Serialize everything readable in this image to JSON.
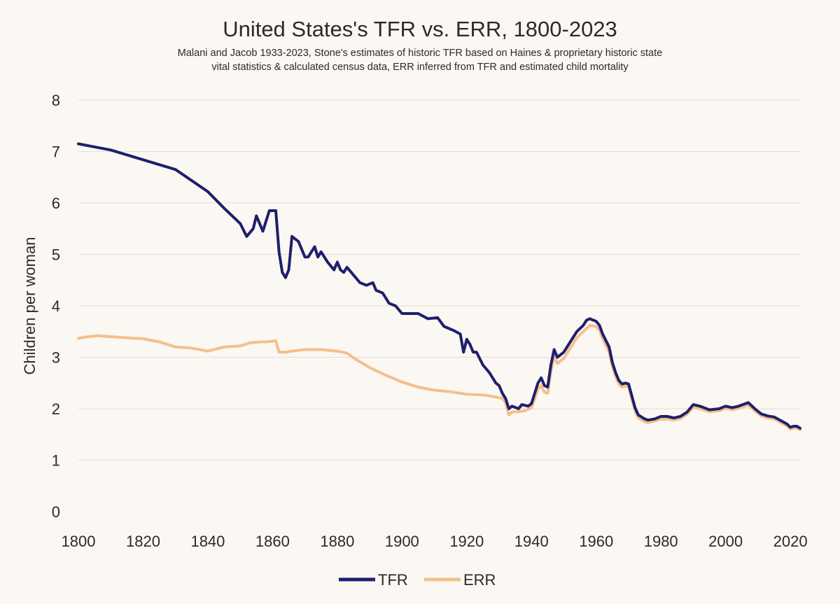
{
  "chart_data": {
    "type": "line",
    "title": "United States's TFR vs. ERR, 1800-2023",
    "subtitle": [
      "Malani and Jacob 1933-2023, Stone's estimates of historic TFR based on Haines & proprietary historic state",
      "vital statistics & calculated census data, ERR inferred from TFR and estimated child mortality"
    ],
    "xlabel": "",
    "ylabel": "Children per woman",
    "xlim": [
      1800,
      2023
    ],
    "ylim": [
      0,
      8
    ],
    "xticks": [
      1800,
      1820,
      1840,
      1860,
      1880,
      1900,
      1920,
      1940,
      1960,
      1980,
      2000,
      2020
    ],
    "yticks": [
      0,
      1,
      2,
      3,
      4,
      5,
      6,
      7,
      8
    ],
    "grid": true,
    "legend_position": "bottom-center",
    "series": [
      {
        "name": "TFR",
        "color": "#1f1f6e",
        "points": [
          [
            1800,
            7.15
          ],
          [
            1810,
            7.03
          ],
          [
            1820,
            6.84
          ],
          [
            1830,
            6.65
          ],
          [
            1840,
            6.22
          ],
          [
            1845,
            5.9
          ],
          [
            1850,
            5.6
          ],
          [
            1852,
            5.35
          ],
          [
            1854,
            5.5
          ],
          [
            1855,
            5.75
          ],
          [
            1857,
            5.45
          ],
          [
            1859,
            5.85
          ],
          [
            1861,
            5.85
          ],
          [
            1862,
            5.05
          ],
          [
            1863,
            4.65
          ],
          [
            1864,
            4.55
          ],
          [
            1865,
            4.7
          ],
          [
            1866,
            5.35
          ],
          [
            1868,
            5.25
          ],
          [
            1870,
            4.95
          ],
          [
            1871,
            4.95
          ],
          [
            1873,
            5.15
          ],
          [
            1874,
            4.95
          ],
          [
            1875,
            5.05
          ],
          [
            1877,
            4.85
          ],
          [
            1879,
            4.7
          ],
          [
            1880,
            4.85
          ],
          [
            1881,
            4.7
          ],
          [
            1882,
            4.65
          ],
          [
            1883,
            4.75
          ],
          [
            1885,
            4.6
          ],
          [
            1887,
            4.45
          ],
          [
            1889,
            4.4
          ],
          [
            1891,
            4.45
          ],
          [
            1892,
            4.3
          ],
          [
            1894,
            4.25
          ],
          [
            1896,
            4.05
          ],
          [
            1898,
            4.0
          ],
          [
            1900,
            3.85
          ],
          [
            1902,
            3.85
          ],
          [
            1905,
            3.85
          ],
          [
            1908,
            3.75
          ],
          [
            1911,
            3.77
          ],
          [
            1913,
            3.6
          ],
          [
            1916,
            3.52
          ],
          [
            1918,
            3.45
          ],
          [
            1919,
            3.1
          ],
          [
            1920,
            3.35
          ],
          [
            1921,
            3.25
          ],
          [
            1922,
            3.1
          ],
          [
            1923,
            3.1
          ],
          [
            1925,
            2.85
          ],
          [
            1927,
            2.7
          ],
          [
            1929,
            2.5
          ],
          [
            1930,
            2.45
          ],
          [
            1931,
            2.3
          ],
          [
            1932,
            2.2
          ],
          [
            1933,
            2.0
          ],
          [
            1934,
            2.05
          ],
          [
            1936,
            2.0
          ],
          [
            1937,
            2.08
          ],
          [
            1939,
            2.05
          ],
          [
            1940,
            2.1
          ],
          [
            1942,
            2.5
          ],
          [
            1943,
            2.6
          ],
          [
            1944,
            2.45
          ],
          [
            1945,
            2.42
          ],
          [
            1946,
            2.85
          ],
          [
            1947,
            3.15
          ],
          [
            1948,
            3.0
          ],
          [
            1950,
            3.1
          ],
          [
            1952,
            3.3
          ],
          [
            1954,
            3.5
          ],
          [
            1956,
            3.62
          ],
          [
            1957,
            3.72
          ],
          [
            1958,
            3.75
          ],
          [
            1960,
            3.7
          ],
          [
            1961,
            3.62
          ],
          [
            1962,
            3.45
          ],
          [
            1964,
            3.2
          ],
          [
            1965,
            2.9
          ],
          [
            1966,
            2.7
          ],
          [
            1967,
            2.55
          ],
          [
            1968,
            2.48
          ],
          [
            1969,
            2.5
          ],
          [
            1970,
            2.48
          ],
          [
            1971,
            2.25
          ],
          [
            1972,
            2.02
          ],
          [
            1973,
            1.88
          ],
          [
            1975,
            1.8
          ],
          [
            1976,
            1.78
          ],
          [
            1978,
            1.8
          ],
          [
            1980,
            1.85
          ],
          [
            1982,
            1.85
          ],
          [
            1984,
            1.82
          ],
          [
            1986,
            1.85
          ],
          [
            1988,
            1.93
          ],
          [
            1990,
            2.08
          ],
          [
            1992,
            2.05
          ],
          [
            1995,
            1.98
          ],
          [
            1998,
            2.0
          ],
          [
            2000,
            2.05
          ],
          [
            2002,
            2.02
          ],
          [
            2004,
            2.05
          ],
          [
            2007,
            2.12
          ],
          [
            2009,
            2.0
          ],
          [
            2011,
            1.9
          ],
          [
            2013,
            1.86
          ],
          [
            2015,
            1.84
          ],
          [
            2017,
            1.77
          ],
          [
            2019,
            1.7
          ],
          [
            2020,
            1.64
          ],
          [
            2021,
            1.66
          ],
          [
            2022,
            1.66
          ],
          [
            2023,
            1.62
          ]
        ]
      },
      {
        "name": "ERR",
        "color": "#f4bf8c",
        "points": [
          [
            1800,
            3.37
          ],
          [
            1803,
            3.4
          ],
          [
            1806,
            3.42
          ],
          [
            1810,
            3.4
          ],
          [
            1815,
            3.38
          ],
          [
            1820,
            3.36
          ],
          [
            1825,
            3.3
          ],
          [
            1830,
            3.2
          ],
          [
            1835,
            3.18
          ],
          [
            1840,
            3.12
          ],
          [
            1845,
            3.2
          ],
          [
            1850,
            3.22
          ],
          [
            1853,
            3.28
          ],
          [
            1856,
            3.3
          ],
          [
            1858,
            3.3
          ],
          [
            1861,
            3.32
          ],
          [
            1862,
            3.1
          ],
          [
            1864,
            3.1
          ],
          [
            1866,
            3.12
          ],
          [
            1870,
            3.15
          ],
          [
            1875,
            3.15
          ],
          [
            1880,
            3.12
          ],
          [
            1883,
            3.08
          ],
          [
            1886,
            2.95
          ],
          [
            1890,
            2.8
          ],
          [
            1895,
            2.65
          ],
          [
            1900,
            2.52
          ],
          [
            1905,
            2.42
          ],
          [
            1910,
            2.36
          ],
          [
            1915,
            2.33
          ],
          [
            1920,
            2.28
          ],
          [
            1925,
            2.27
          ],
          [
            1928,
            2.24
          ],
          [
            1931,
            2.2
          ],
          [
            1932,
            2.12
          ],
          [
            1933,
            1.88
          ],
          [
            1934,
            1.94
          ],
          [
            1936,
            1.94
          ],
          [
            1938,
            1.96
          ],
          [
            1940,
            2.02
          ],
          [
            1942,
            2.38
          ],
          [
            1943,
            2.45
          ],
          [
            1944,
            2.32
          ],
          [
            1945,
            2.3
          ],
          [
            1946,
            2.72
          ],
          [
            1947,
            3.02
          ],
          [
            1948,
            2.88
          ],
          [
            1950,
            2.98
          ],
          [
            1952,
            3.18
          ],
          [
            1954,
            3.38
          ],
          [
            1956,
            3.5
          ],
          [
            1958,
            3.62
          ],
          [
            1960,
            3.6
          ],
          [
            1961,
            3.52
          ],
          [
            1962,
            3.36
          ],
          [
            1964,
            3.1
          ],
          [
            1965,
            2.82
          ],
          [
            1966,
            2.62
          ],
          [
            1967,
            2.48
          ],
          [
            1968,
            2.42
          ],
          [
            1969,
            2.44
          ],
          [
            1970,
            2.42
          ],
          [
            1971,
            2.18
          ],
          [
            1972,
            1.96
          ],
          [
            1973,
            1.82
          ],
          [
            1975,
            1.75
          ],
          [
            1976,
            1.73
          ],
          [
            1978,
            1.76
          ],
          [
            1980,
            1.8
          ],
          [
            1982,
            1.8
          ],
          [
            1984,
            1.78
          ],
          [
            1986,
            1.81
          ],
          [
            1988,
            1.89
          ],
          [
            1990,
            2.03
          ],
          [
            1992,
            2.0
          ],
          [
            1995,
            1.94
          ],
          [
            1998,
            1.96
          ],
          [
            2000,
            2.01
          ],
          [
            2002,
            1.98
          ],
          [
            2004,
            2.01
          ],
          [
            2007,
            2.07
          ],
          [
            2009,
            1.96
          ],
          [
            2011,
            1.86
          ],
          [
            2013,
            1.82
          ],
          [
            2015,
            1.8
          ],
          [
            2017,
            1.73
          ],
          [
            2019,
            1.66
          ],
          [
            2020,
            1.6
          ],
          [
            2021,
            1.62
          ],
          [
            2022,
            1.62
          ],
          [
            2023,
            1.59
          ]
        ]
      }
    ]
  }
}
